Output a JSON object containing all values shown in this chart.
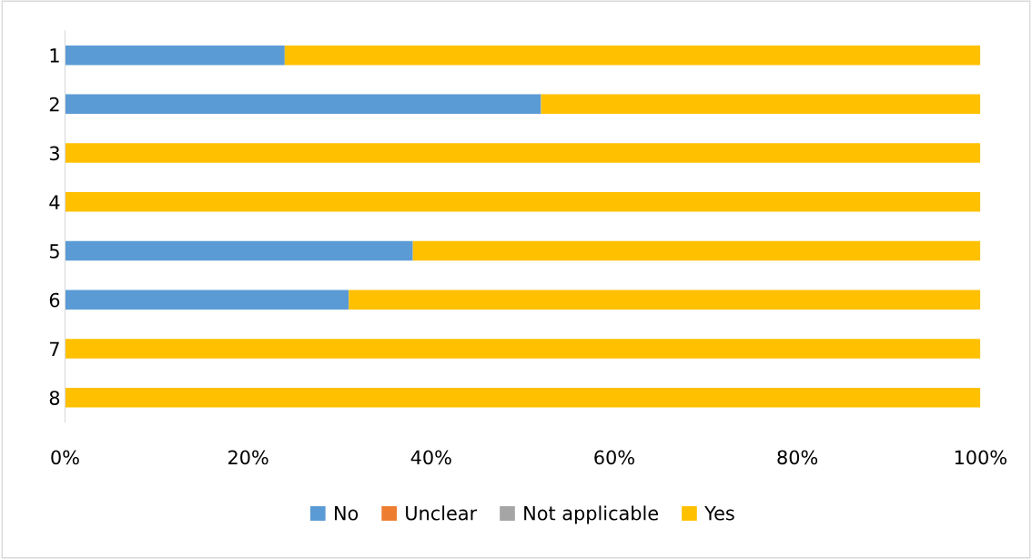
{
  "chart_data": {
    "type": "bar",
    "orientation": "horizontal",
    "stacked": true,
    "categories": [
      "1",
      "2",
      "3",
      "4",
      "5",
      "6",
      "7",
      "8"
    ],
    "series": [
      {
        "name": "No",
        "color": "#5b9bd5",
        "values": [
          24,
          52,
          0,
          0,
          38,
          31,
          0,
          0
        ]
      },
      {
        "name": "Unclear",
        "color": "#ed7d31",
        "values": [
          0,
          0,
          0,
          0,
          0,
          0,
          0,
          0
        ]
      },
      {
        "name": "Not applicable",
        "color": "#a5a5a5",
        "values": [
          0,
          0,
          0,
          0,
          0,
          0,
          0,
          0
        ]
      },
      {
        "name": "Yes",
        "color": "#ffc000",
        "values": [
          76,
          48,
          100,
          100,
          62,
          69,
          100,
          100
        ]
      }
    ],
    "xlim": [
      0,
      100
    ],
    "xticks": [
      {
        "value": 0,
        "label": "0%"
      },
      {
        "value": 20,
        "label": "20%"
      },
      {
        "value": 40,
        "label": "40%"
      },
      {
        "value": 60,
        "label": "60%"
      },
      {
        "value": 80,
        "label": "80%"
      },
      {
        "value": 100,
        "label": "100%"
      }
    ],
    "grid": false,
    "legend": "bottom"
  }
}
